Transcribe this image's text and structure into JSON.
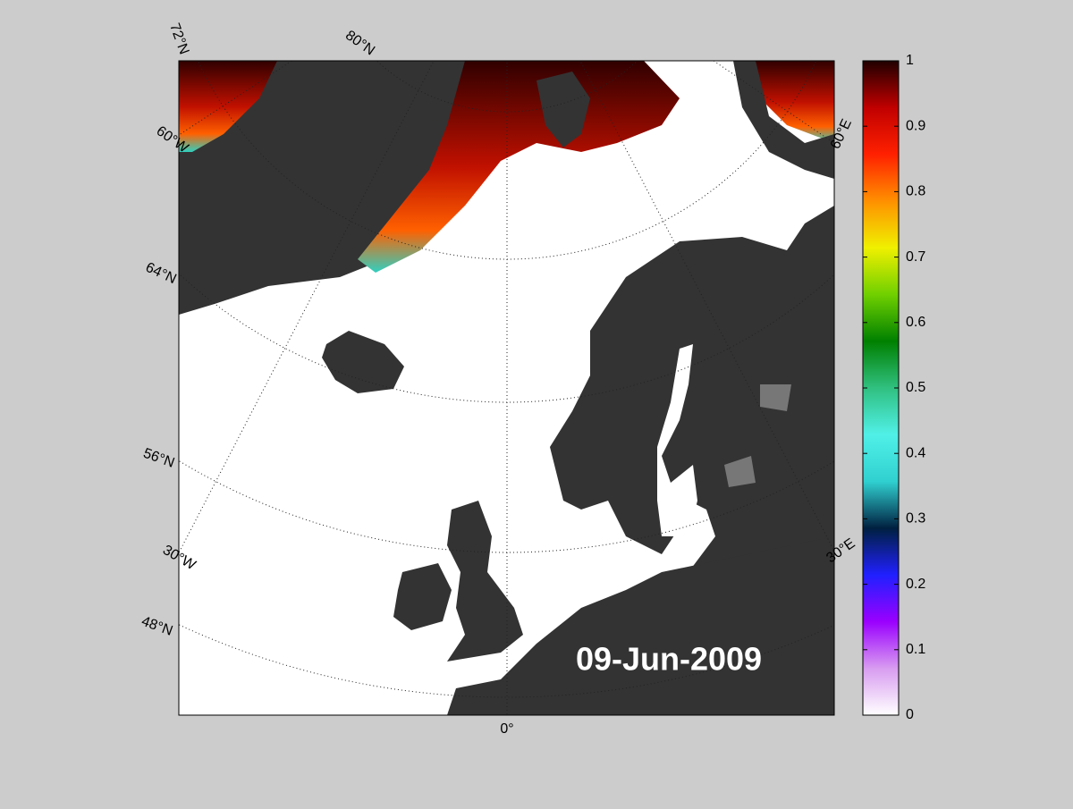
{
  "map": {
    "date": "09-Jun-2009",
    "graticule_labels": [
      "72°N",
      "80°N",
      "60°W",
      "64°N",
      "56°N",
      "30°W",
      "48°N",
      "0°",
      "60°E",
      "30°E"
    ],
    "colorbar": {
      "lim": [
        0,
        1
      ],
      "ticks": [
        0,
        0.1,
        0.2,
        0.3,
        0.4,
        0.5,
        0.6,
        0.7,
        0.8,
        0.9,
        1
      ],
      "colormap": [
        "#ffffff",
        "#d89cf0",
        "#9a00ff",
        "#2020ff",
        "#002040",
        "#30d0d0",
        "#50f0e8",
        "#30c080",
        "#008000",
        "#70d000",
        "#f0f000",
        "#ff9000",
        "#ff2000",
        "#c00000",
        "#200000"
      ]
    }
  }
}
